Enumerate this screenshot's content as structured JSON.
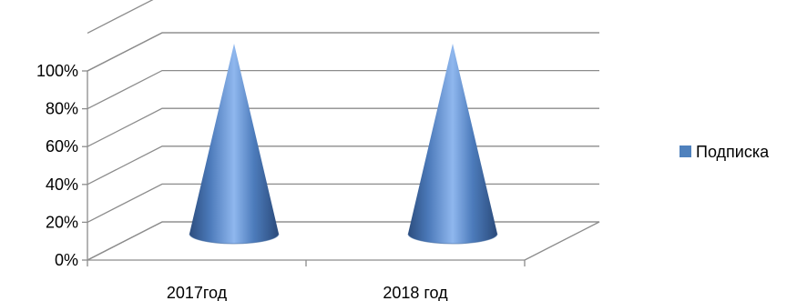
{
  "chart_data": {
    "type": "bar",
    "style": "3d-cone",
    "categories": [
      "2017год",
      "2018 год"
    ],
    "series": [
      {
        "name": "Подписка",
        "values": [
          100,
          100
        ],
        "color": "#4f81bd"
      }
    ],
    "y_ticks": [
      "0%",
      "20%",
      "40%",
      "60%",
      "80%",
      "100%"
    ],
    "ylim": [
      0,
      100
    ],
    "grid": true,
    "legend": "right"
  }
}
